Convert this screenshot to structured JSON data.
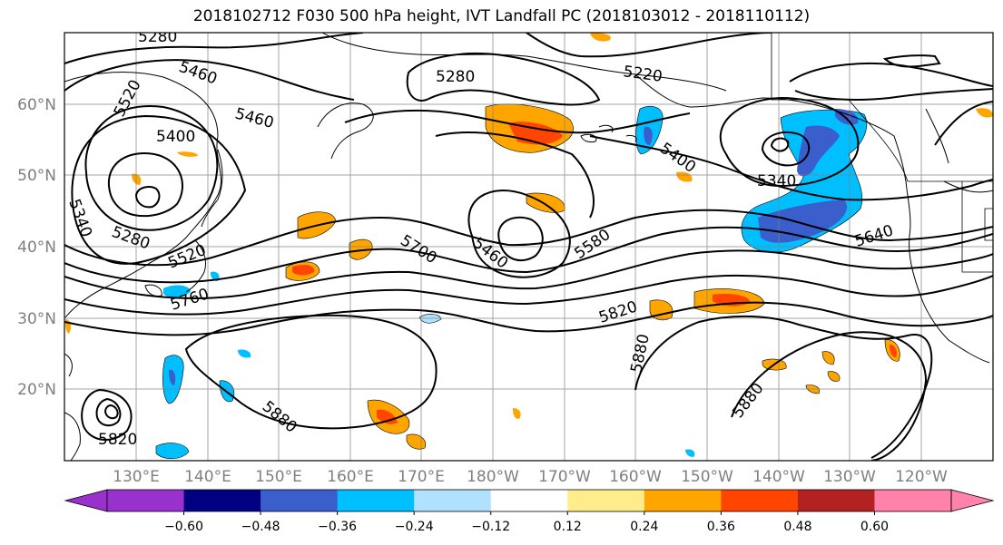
{
  "title": "2018102712 F030 500 hPa height, IVT Landfall PC (2018103012 - 2018110112)",
  "lat_labels": [
    "60°N",
    "50°N",
    "40°N",
    "30°N",
    "20°N"
  ],
  "lon_labels": [
    "130°E",
    "140°E",
    "150°E",
    "160°E",
    "170°E",
    "180°W",
    "170°W",
    "160°W",
    "150°W",
    "140°W",
    "130°W",
    "120°W"
  ],
  "contour_labels": [
    "5280",
    "5460",
    "5520",
    "5460",
    "5400",
    "5280",
    "5220",
    "5340",
    "5400",
    "5340",
    "5280",
    "5520",
    "5700",
    "5460",
    "5580",
    "5640",
    "5760",
    "5820",
    "5880",
    "5880",
    "5880",
    "5820"
  ],
  "colorbar": {
    "ticks": [
      "−0.60",
      "−0.48",
      "−0.36",
      "−0.24",
      "−0.12",
      "0.12",
      "0.24",
      "0.36",
      "0.48",
      "0.60"
    ],
    "colors": [
      "#9932cc",
      "#000080",
      "#3a5fcd",
      "#00bfff",
      "#b0e2ff",
      "#ffffff",
      "#ffec8b",
      "#ffa500",
      "#ff4500",
      "#b22222",
      "#ff82ab",
      "#ff82ab"
    ]
  }
}
